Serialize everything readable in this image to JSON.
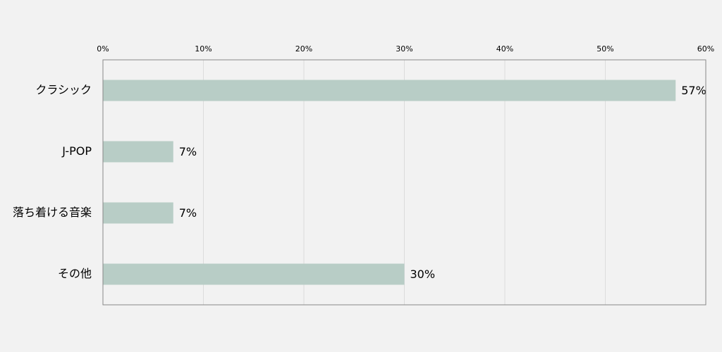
{
  "chart_data": {
    "type": "bar",
    "orientation": "horizontal",
    "categories": [
      "クラシック",
      "J-POP",
      "落ち着ける音楽",
      "その他"
    ],
    "values": [
      57,
      7,
      7,
      30
    ],
    "value_labels": [
      "57%",
      "7%",
      "7%",
      "30%"
    ],
    "color": "#b8cdc6",
    "xlim": [
      0,
      60
    ],
    "xticks": [
      {
        "value": 0,
        "label": "0%"
      },
      {
        "value": 10,
        "label": "10%"
      },
      {
        "value": 20,
        "label": "20%"
      },
      {
        "value": 30,
        "label": "30%"
      },
      {
        "value": 40,
        "label": "40%"
      },
      {
        "value": 50,
        "label": "50%"
      },
      {
        "value": 60,
        "label": "60%"
      }
    ],
    "grid": true
  }
}
